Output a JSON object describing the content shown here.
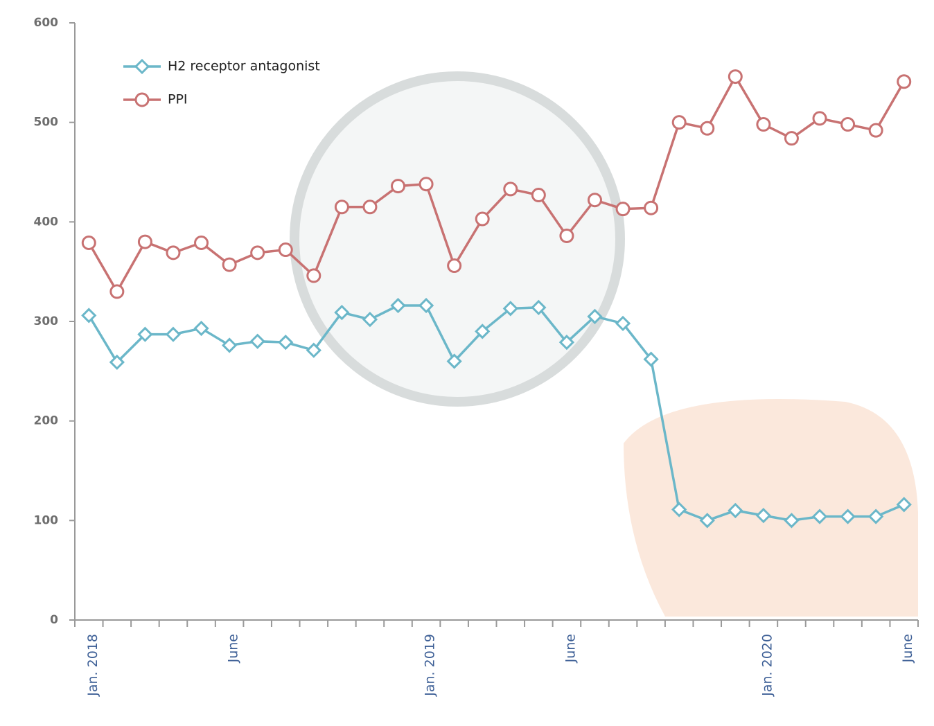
{
  "chart_data": {
    "type": "line",
    "categories": [
      "Jan. 2018",
      null,
      null,
      null,
      null,
      "June",
      null,
      null,
      null,
      null,
      null,
      null,
      "Jan. 2019",
      null,
      null,
      null,
      null,
      "June",
      null,
      null,
      null,
      null,
      null,
      null,
      "Jan. 2020",
      null,
      null,
      null,
      null,
      "June"
    ],
    "series": [
      {
        "name": "H2 receptor antagonist",
        "color": "#6bb7c9",
        "marker": "diamond",
        "values": [
          306,
          259,
          287,
          287,
          293,
          276,
          280,
          279,
          271,
          309,
          302,
          316,
          316,
          260,
          290,
          313,
          314,
          279,
          305,
          298,
          262,
          111,
          100,
          110,
          105,
          100,
          104,
          104,
          104,
          116
        ]
      },
      {
        "name": "PPI",
        "color": "#c87272",
        "marker": "circle",
        "values": [
          379,
          330,
          380,
          369,
          379,
          357,
          369,
          372,
          346,
          415,
          415,
          436,
          438,
          356,
          403,
          433,
          427,
          386,
          422,
          413,
          414,
          500,
          494,
          546,
          498,
          484,
          504,
          498,
          492,
          541
        ]
      }
    ],
    "ylim": [
      0,
      600
    ],
    "yticks": [
      0,
      100,
      200,
      300,
      400,
      500,
      600
    ],
    "legend": "upper left"
  }
}
